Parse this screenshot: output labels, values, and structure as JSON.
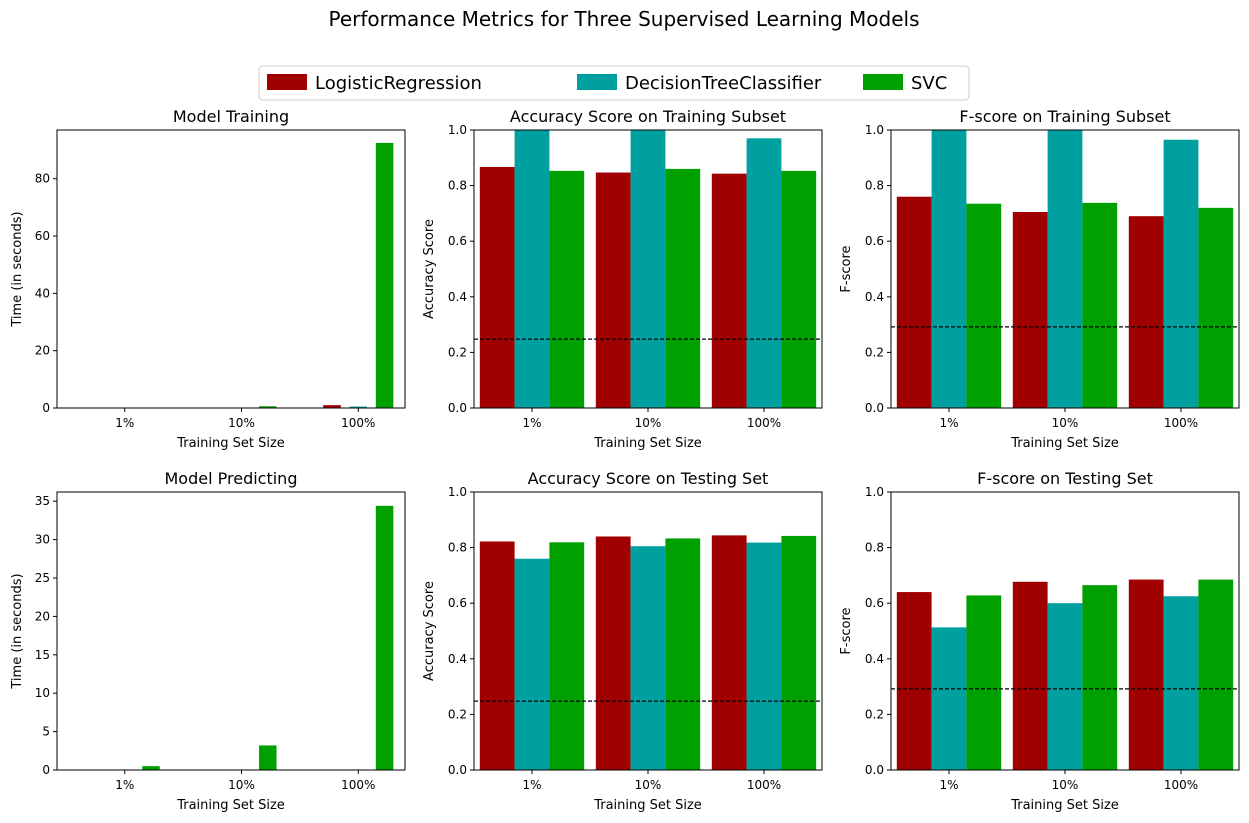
{
  "figure": {
    "title": "Performance Metrics for Three Supervised Learning Models"
  },
  "legend": {
    "placement": "top-center",
    "items": [
      {
        "name": "LogisticRegression",
        "color": "#a00000"
      },
      {
        "name": "DecisionTreeClassifier",
        "color": "#00a0a0"
      },
      {
        "name": "SVC",
        "color": "#00a000"
      }
    ]
  },
  "chart_data": [
    {
      "type": "bar",
      "title": "Model Training",
      "xlabel": "Training Set Size",
      "ylabel": "Time (in seconds)",
      "categories": [
        "1%",
        "10%",
        "100%"
      ],
      "ylim": [
        0,
        97
      ],
      "yticks": [
        0,
        20,
        40,
        60,
        80
      ],
      "series": [
        {
          "name": "LogisticRegression",
          "values": [
            0.01,
            0.05,
            1.0
          ]
        },
        {
          "name": "DecisionTreeClassifier",
          "values": [
            0.01,
            0.05,
            0.5
          ]
        },
        {
          "name": "SVC",
          "values": [
            0.02,
            0.6,
            92.5
          ]
        }
      ]
    },
    {
      "type": "bar",
      "title": "Accuracy Score on Training Subset",
      "xlabel": "Training Set Size",
      "ylabel": "Accuracy Score",
      "categories": [
        "1%",
        "10%",
        "100%"
      ],
      "ylim": [
        0,
        1
      ],
      "yticks": [
        0,
        0.2,
        0.4,
        0.6,
        0.8,
        1.0
      ],
      "baseline": 0.2478,
      "series": [
        {
          "name": "LogisticRegression",
          "values": [
            0.867,
            0.847,
            0.843
          ]
        },
        {
          "name": "DecisionTreeClassifier",
          "values": [
            1.0,
            1.0,
            0.97
          ]
        },
        {
          "name": "SVC",
          "values": [
            0.853,
            0.86,
            0.853
          ]
        }
      ]
    },
    {
      "type": "bar",
      "title": "F-score on Training Subset",
      "xlabel": "Training Set Size",
      "ylabel": "F-score",
      "categories": [
        "1%",
        "10%",
        "100%"
      ],
      "ylim": [
        0,
        1
      ],
      "yticks": [
        0,
        0.2,
        0.4,
        0.6,
        0.8,
        1.0
      ],
      "baseline": 0.2917,
      "series": [
        {
          "name": "LogisticRegression",
          "values": [
            0.76,
            0.705,
            0.69
          ]
        },
        {
          "name": "DecisionTreeClassifier",
          "values": [
            1.0,
            1.0,
            0.965
          ]
        },
        {
          "name": "SVC",
          "values": [
            0.735,
            0.738,
            0.72
          ]
        }
      ]
    },
    {
      "type": "bar",
      "title": "Model Predicting",
      "xlabel": "Training Set Size",
      "ylabel": "Time (in seconds)",
      "categories": [
        "1%",
        "10%",
        "100%"
      ],
      "ylim": [
        0,
        36.2
      ],
      "yticks": [
        0,
        5,
        10,
        15,
        20,
        25,
        30,
        35
      ],
      "series": [
        {
          "name": "LogisticRegression",
          "values": [
            0.01,
            0.01,
            0.02
          ]
        },
        {
          "name": "DecisionTreeClassifier",
          "values": [
            0.01,
            0.01,
            0.02
          ]
        },
        {
          "name": "SVC",
          "values": [
            0.5,
            3.2,
            34.4
          ]
        }
      ]
    },
    {
      "type": "bar",
      "title": "Accuracy Score on Testing Set",
      "xlabel": "Training Set Size",
      "ylabel": "Accuracy Score",
      "categories": [
        "1%",
        "10%",
        "100%"
      ],
      "ylim": [
        0,
        1
      ],
      "yticks": [
        0,
        0.2,
        0.4,
        0.6,
        0.8,
        1.0
      ],
      "baseline": 0.2478,
      "series": [
        {
          "name": "LogisticRegression",
          "values": [
            0.822,
            0.84,
            0.844
          ]
        },
        {
          "name": "DecisionTreeClassifier",
          "values": [
            0.76,
            0.805,
            0.818
          ]
        },
        {
          "name": "SVC",
          "values": [
            0.819,
            0.833,
            0.842
          ]
        }
      ]
    },
    {
      "type": "bar",
      "title": "F-score on Testing Set",
      "xlabel": "Training Set Size",
      "ylabel": "F-score",
      "categories": [
        "1%",
        "10%",
        "100%"
      ],
      "ylim": [
        0,
        1
      ],
      "yticks": [
        0,
        0.2,
        0.4,
        0.6,
        0.8,
        1.0
      ],
      "baseline": 0.2917,
      "series": [
        {
          "name": "LogisticRegression",
          "values": [
            0.64,
            0.677,
            0.685
          ]
        },
        {
          "name": "DecisionTreeClassifier",
          "values": [
            0.513,
            0.6,
            0.625
          ]
        },
        {
          "name": "SVC",
          "values": [
            0.628,
            0.665,
            0.685
          ]
        }
      ]
    }
  ]
}
